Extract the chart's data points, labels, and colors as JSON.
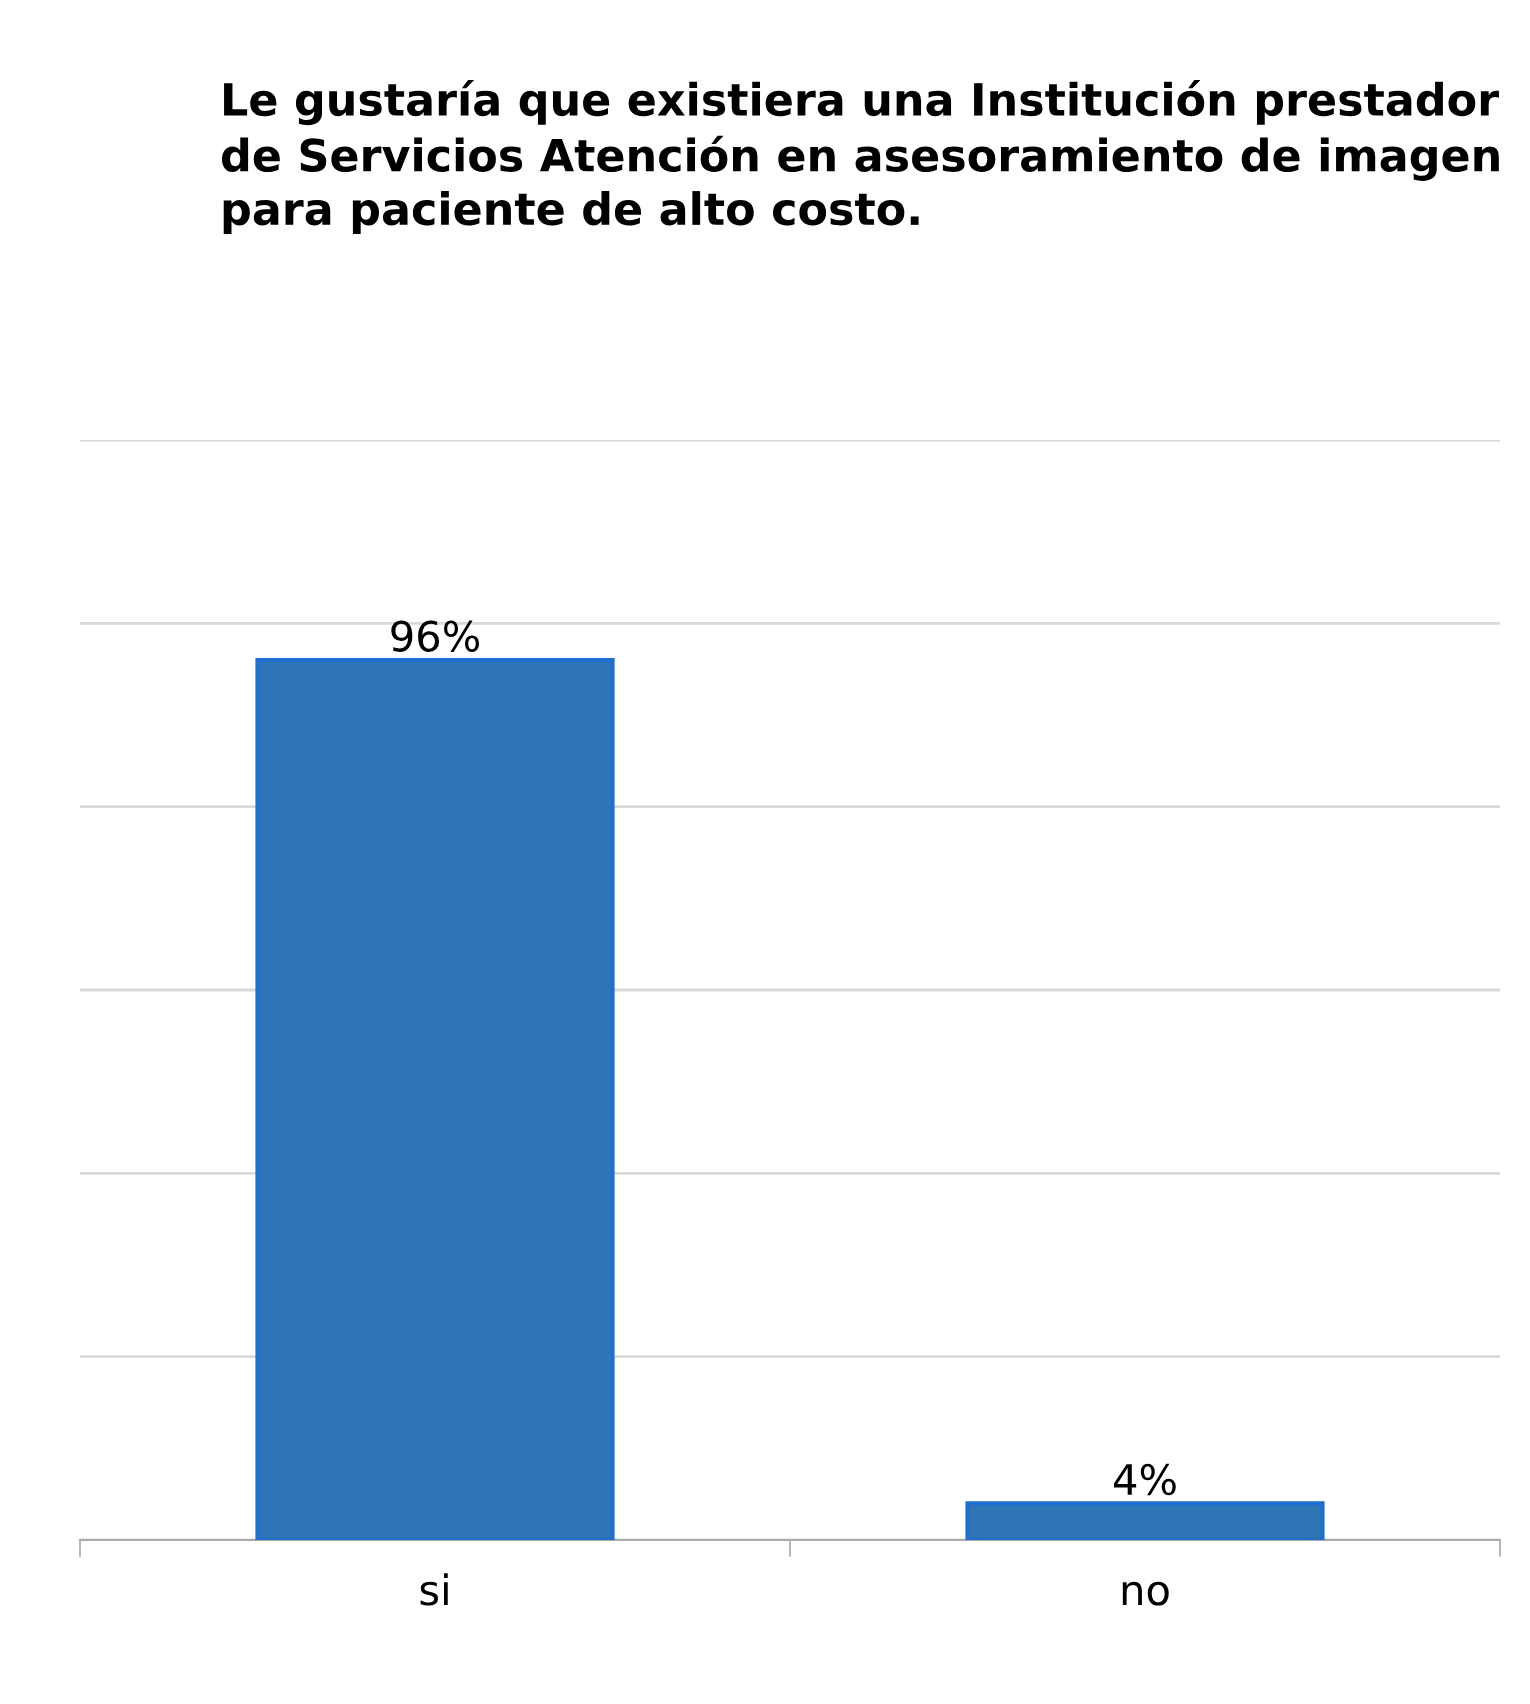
{
  "chart_data": {
    "type": "bar",
    "title": "Le gustaría que existiera una Institución prestador de Servicios Atención en asesoramiento de imagen para paciente de alto costo.",
    "categories": [
      "si",
      "no"
    ],
    "values": [
      96,
      4
    ],
    "value_labels": [
      "96%",
      "4%"
    ],
    "color": "#2e75b6",
    "ylim": [
      0,
      120
    ],
    "yticks": [
      {
        "value": 0,
        "label": null
      },
      {
        "value": 20,
        "label": null
      },
      {
        "value": 40,
        "label": null
      },
      {
        "value": 60,
        "label": null
      },
      {
        "value": 80,
        "label": null
      },
      {
        "value": 100,
        "label": null
      },
      {
        "value": 120,
        "label": null
      }
    ],
    "tick_labels": "x",
    "grid": "y",
    "legend": false
  }
}
